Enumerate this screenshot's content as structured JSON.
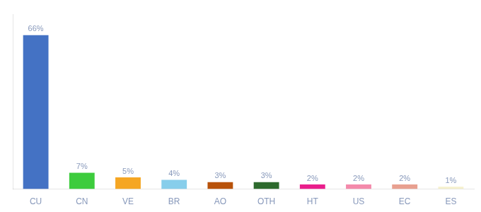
{
  "chart_data": {
    "type": "bar",
    "categories": [
      "CU",
      "CN",
      "VE",
      "BR",
      "AO",
      "OTH",
      "HT",
      "US",
      "EC",
      "ES"
    ],
    "values": [
      66,
      7,
      5,
      4,
      3,
      3,
      2,
      2,
      2,
      1
    ],
    "value_labels": [
      "66%",
      "7%",
      "5%",
      "4%",
      "3%",
      "3%",
      "2%",
      "2%",
      "2%",
      "1%"
    ],
    "colors": [
      "#4472c4",
      "#3dcc3d",
      "#f5a623",
      "#87ceeb",
      "#b8520a",
      "#2d6a2d",
      "#e91e8c",
      "#f48aab",
      "#e8a090",
      "#f5f0cc"
    ],
    "ylim": [
      0,
      75
    ],
    "grid": false,
    "data_labels": true,
    "tick_labels": "x"
  }
}
